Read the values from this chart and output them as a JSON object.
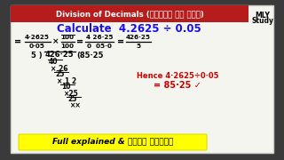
{
  "title": "Division of Decimals (दशमलव का भाग)",
  "title_bg": "#b71c1c",
  "title_color": "#ffffff",
  "calc_text": "Calculate  4.2625 ÷ 0.05",
  "calc_color": "#1a0de8",
  "bg_color": "#8a8a8a",
  "whiteboard_color": "#f5f5f0",
  "mly_text": "MLY\nStudy",
  "bottom_text": "Full explained & आसान तरीका",
  "bottom_bg": "#ffff00",
  "hence_text": "Hence 4·2625÷0·05",
  "hence_result": "= 85·25 ✓",
  "hence_color": "#cc0000",
  "frame_color": "#555555"
}
